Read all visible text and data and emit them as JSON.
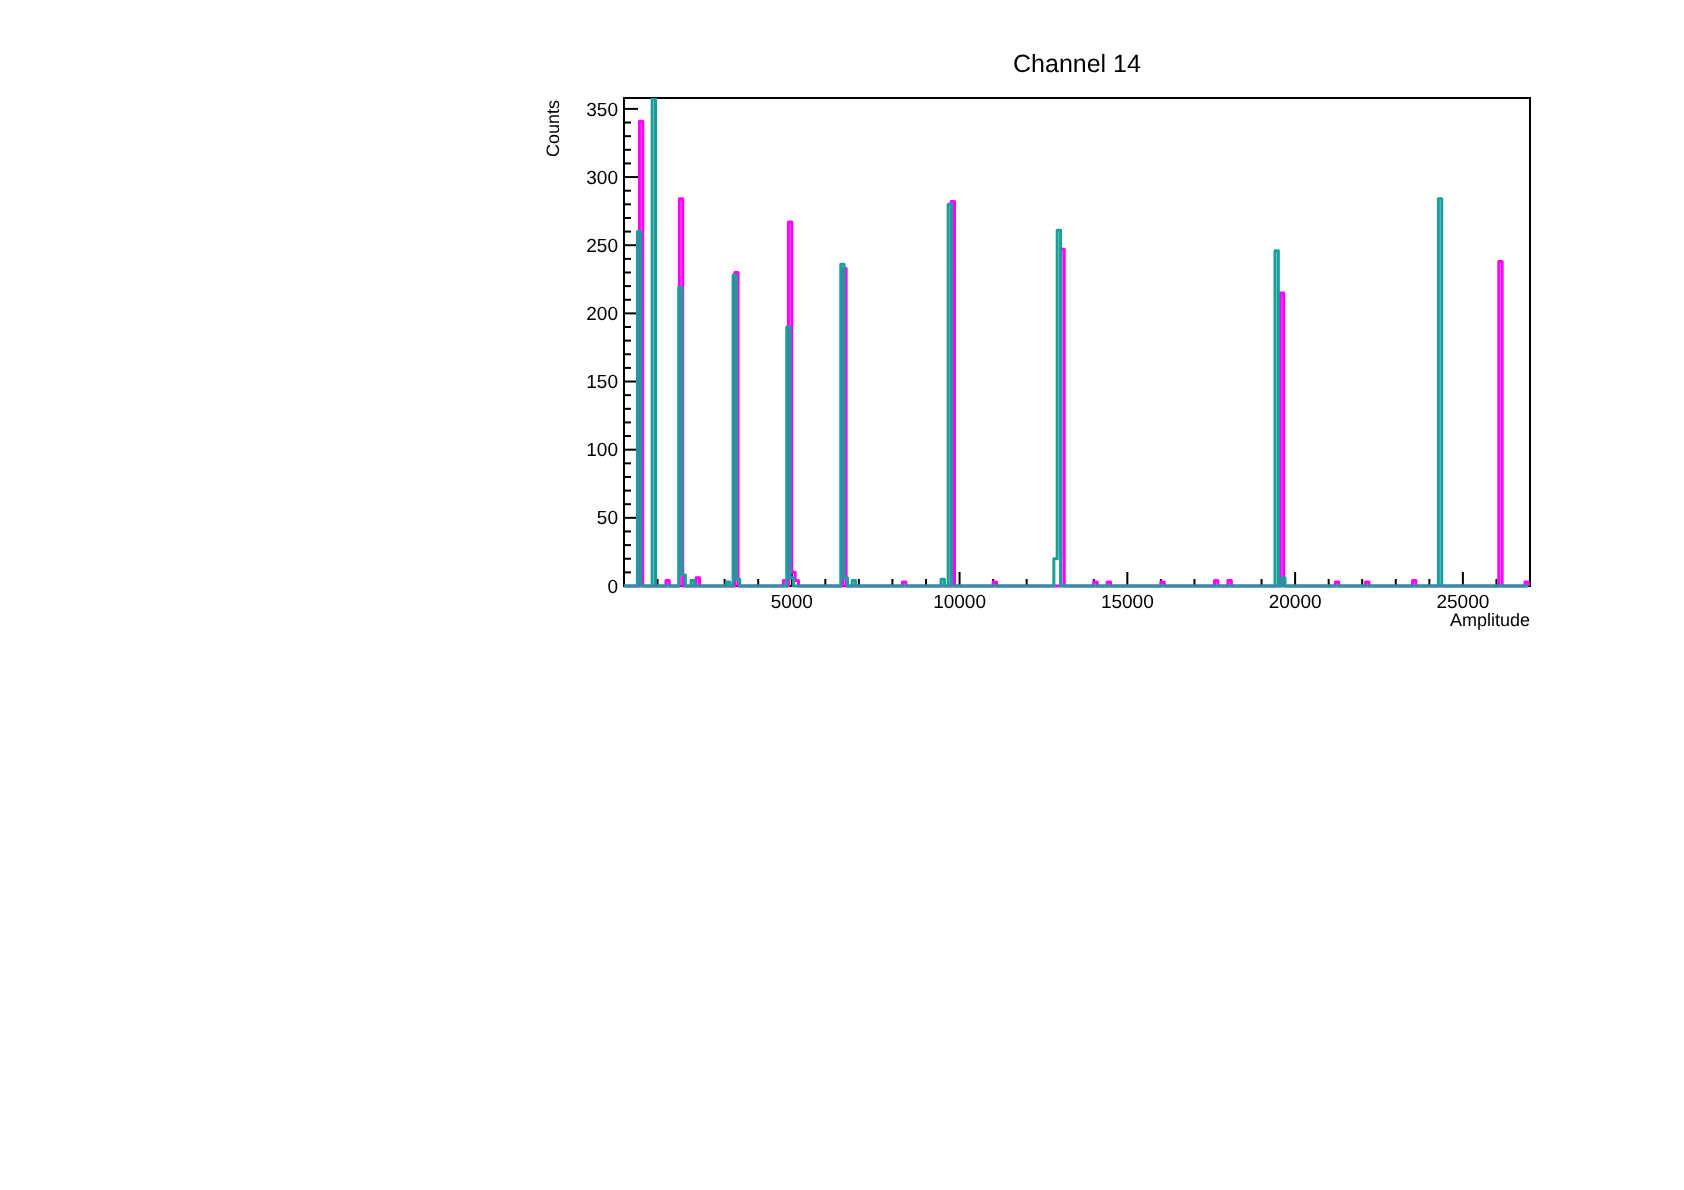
{
  "chart_data": {
    "type": "step",
    "title": "Channel 14",
    "xlabel": "Amplitude",
    "ylabel": "Counts",
    "xlim": [
      0,
      27000
    ],
    "ylim": [
      0,
      358
    ],
    "xticks": [
      {
        "value": 1000,
        "label": null
      },
      {
        "value": 2000,
        "label": null
      },
      {
        "value": 3000,
        "label": null
      },
      {
        "value": 4000,
        "label": null
      },
      5000,
      {
        "value": 6000,
        "label": null
      },
      {
        "value": 7000,
        "label": null
      },
      {
        "value": 8000,
        "label": null
      },
      {
        "value": 9000,
        "label": null
      },
      10000,
      {
        "value": 11000,
        "label": null
      },
      {
        "value": 12000,
        "label": null
      },
      {
        "value": 13000,
        "label": null
      },
      {
        "value": 14000,
        "label": null
      },
      15000,
      {
        "value": 16000,
        "label": null
      },
      {
        "value": 17000,
        "label": null
      },
      {
        "value": 18000,
        "label": null
      },
      {
        "value": 19000,
        "label": null
      },
      20000,
      {
        "value": 21000,
        "label": null
      },
      {
        "value": 22000,
        "label": null
      },
      {
        "value": 23000,
        "label": null
      },
      {
        "value": 24000,
        "label": null
      },
      25000,
      {
        "value": 26000,
        "label": null
      }
    ],
    "yticks": [
      0,
      {
        "value": 10,
        "label": null
      },
      {
        "value": 20,
        "label": null
      },
      {
        "value": 30,
        "label": null
      },
      {
        "value": 40,
        "label": null
      },
      50,
      {
        "value": 60,
        "label": null
      },
      {
        "value": 70,
        "label": null
      },
      {
        "value": 80,
        "label": null
      },
      {
        "value": 90,
        "label": null
      },
      100,
      {
        "value": 110,
        "label": null
      },
      {
        "value": 120,
        "label": null
      },
      {
        "value": 130,
        "label": null
      },
      {
        "value": 140,
        "label": null
      },
      150,
      {
        "value": 160,
        "label": null
      },
      {
        "value": 170,
        "label": null
      },
      {
        "value": 180,
        "label": null
      },
      {
        "value": 190,
        "label": null
      },
      200,
      {
        "value": 210,
        "label": null
      },
      {
        "value": 220,
        "label": null
      },
      {
        "value": 230,
        "label": null
      },
      {
        "value": 240,
        "label": null
      },
      250,
      {
        "value": 260,
        "label": null
      },
      {
        "value": 270,
        "label": null
      },
      {
        "value": 280,
        "label": null
      },
      {
        "value": 290,
        "label": null
      },
      300,
      {
        "value": 310,
        "label": null
      },
      {
        "value": 320,
        "label": null
      },
      {
        "value": 330,
        "label": null
      },
      {
        "value": 340,
        "label": null
      },
      350
    ],
    "series": [
      {
        "color": "#ff00ff",
        "x": [
          0,
          460,
          560,
          1250,
          1350,
          1650,
          1750,
          2150,
          2250,
          3300,
          3400,
          4750,
          4850,
          4900,
          5000,
          5100,
          5200,
          6520,
          6620,
          8300,
          8400,
          9750,
          9850,
          11000,
          11100,
          13020,
          13120,
          14000,
          14100,
          14400,
          14500,
          16000,
          16100,
          17600,
          17700,
          18000,
          18100,
          19560,
          19660,
          21200,
          21300,
          22100,
          22200,
          23500,
          23600,
          26070,
          26170,
          26850,
          26950
        ],
        "values": [
          0,
          341,
          0,
          4,
          0,
          284,
          0,
          6,
          0,
          230,
          0,
          4,
          0,
          267,
          10,
          4,
          0,
          233,
          0,
          3,
          0,
          282,
          0,
          3,
          0,
          247,
          0,
          3,
          0,
          3,
          0,
          3,
          0,
          4,
          0,
          4,
          0,
          215,
          0,
          3,
          0,
          3,
          0,
          4,
          0,
          238,
          0,
          3,
          0
        ]
      },
      {
        "color": "#1a9e9a",
        "x": [
          0,
          400,
          500,
          840,
          940,
          1630,
          1730,
          1830,
          2000,
          2100,
          3050,
          3150,
          3250,
          3350,
          3450,
          4850,
          4950,
          5050,
          6460,
          6560,
          6660,
          6800,
          6900,
          9450,
          9550,
          9660,
          9760,
          12810,
          12910,
          13010,
          19400,
          19500,
          19600,
          19700,
          24270,
          24370,
          26950
        ],
        "values": [
          0,
          260,
          0,
          358,
          0,
          219,
          8,
          0,
          4,
          0,
          3,
          0,
          228,
          5,
          0,
          190,
          6,
          0,
          236,
          6,
          0,
          4,
          0,
          5,
          0,
          280,
          0,
          20,
          261,
          0,
          246,
          0,
          6,
          0,
          284,
          0,
          0
        ]
      }
    ]
  }
}
